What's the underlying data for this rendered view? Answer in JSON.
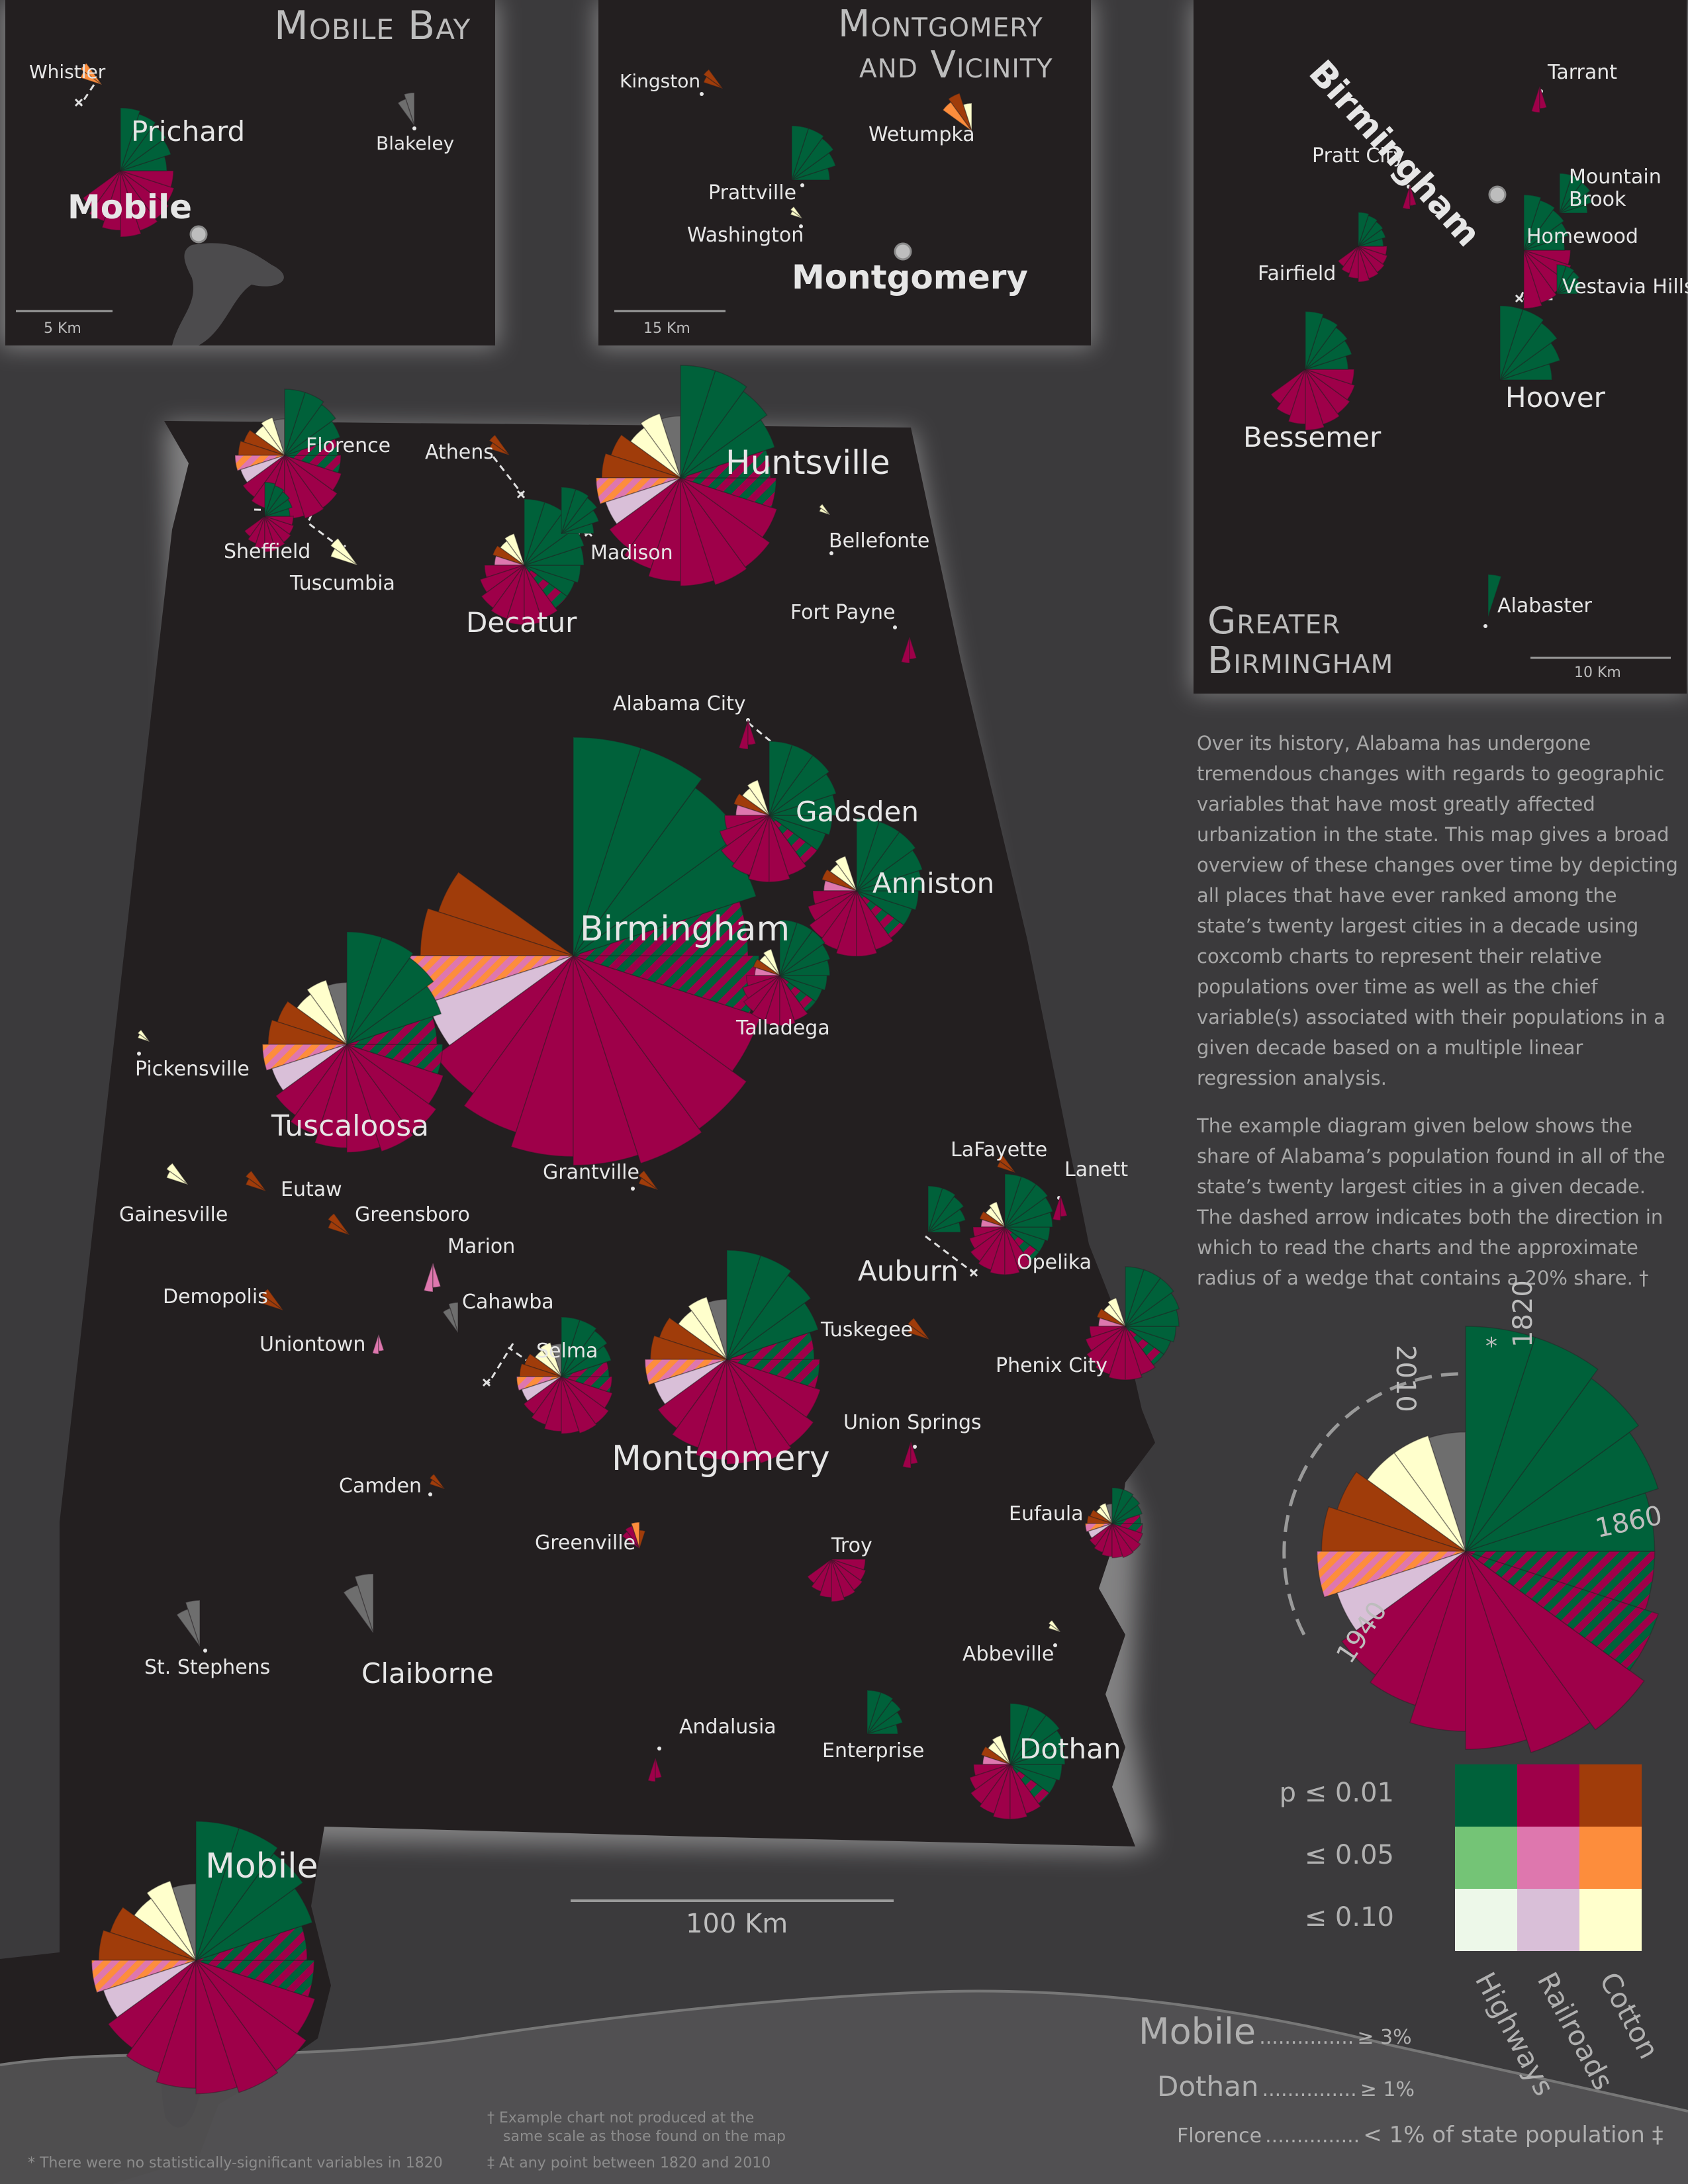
{
  "colors": {
    "background": "#3b3a3c",
    "land": "#231f20",
    "highways": "#00613a",
    "railroads": "#9e0049",
    "cotton": "#a03c0a",
    "highways_05": "#74c476",
    "railroads_05": "#de77ae",
    "cotton_05": "#fd8d3c",
    "highways_10": "#edf8e9",
    "railroads_10": "#d9bfd8",
    "cotton_10": "#ffffcc",
    "none": "#6e6e6e"
  },
  "insets": {
    "mobile_bay": {
      "title": "Mobile Bay",
      "scale": "5 Km"
    },
    "montgomery": {
      "title_line1": "Montgomery",
      "title_line2": "and Vicinity",
      "scale": "15 Km"
    },
    "birmingham": {
      "title_line1": "Greater",
      "title_line2": "Birmingham",
      "scale": "10 Km"
    }
  },
  "inset_places": {
    "whistler": "Whistler",
    "prichard": "Prichard",
    "blakeley": "Blakeley",
    "mobile": "Mobile",
    "kingston": "Kingston",
    "wetumpka": "Wetumpka",
    "prattville": "Prattville",
    "washington": "Washington",
    "montgomery": "Montgomery",
    "birmingham": "Birmingham",
    "tarrant": "Tarrant",
    "pratt_city": "Pratt City",
    "mountain_brook_1": "Mountain",
    "mountain_brook_2": "Brook",
    "homewood": "Homewood",
    "fairfield": "Fairfield",
    "vestavia": "Vestavia Hills",
    "hoover": "Hoover",
    "bessemer": "Bessemer",
    "alabaster": "Alabaster"
  },
  "map_places": {
    "florence": "Florence",
    "athens": "Athens",
    "huntsville": "Huntsville",
    "sheffield": "Sheffield",
    "tuscumbia": "Tuscumbia",
    "madison": "Madison",
    "decatur": "Decatur",
    "bellefonte": "Bellefonte",
    "fort_payne": "Fort Payne",
    "alabama_city": "Alabama City",
    "gadsden": "Gadsden",
    "anniston": "Anniston",
    "birmingham": "Birmingham",
    "talladega": "Talladega",
    "pickensville": "Pickensville",
    "tuscaloosa": "Tuscaloosa",
    "grantville": "Grantville",
    "lafayette": "LaFayette",
    "lanett": "Lanett",
    "gainesville": "Gainesville",
    "eutaw": "Eutaw",
    "greensboro": "Greensboro",
    "marion": "Marion",
    "auburn": "Auburn",
    "opelika": "Opelika",
    "demopolis": "Demopolis",
    "cahawba": "Cahawba",
    "uniontown": "Uniontown",
    "selma": "Selma",
    "tuskegee": "Tuskegee",
    "phenix_city": "Phenix City",
    "union_springs": "Union Springs",
    "montgomery": "Montgomery",
    "camden": "Camden",
    "eufaula": "Eufaula",
    "greenville": "Greenville",
    "troy": "Troy",
    "st_stephens": "St. Stephens",
    "claiborne": "Claiborne",
    "abbeville": "Abbeville",
    "andalusia": "Andalusia",
    "enterprise": "Enterprise",
    "dothan": "Dothan",
    "mobile": "Mobile"
  },
  "main_scale": "100 Km",
  "description": [
    "Over its history, Alabama has undergone tremendous changes with regards to geographic variables that have most greatly affected urbanization in the state. This map gives a broad overview of these changes over time by depicting all places that have ever ranked among the state’s twenty largest cities in a decade using coxcomb charts to represent their relative populations over time as well as the chief variable(s) associated with their populations in a given decade based on a multiple linear regression analysis.",
    "The example diagram given below shows the share of Alabama’s population found in all of the state’s twenty largest cities in a given decade. The dashed arrow indicates both the direction in which to read the charts and the approximate radius of a wedge that contains a 20% share. †"
  ],
  "example_chart": {
    "label_2010": "2010",
    "label_1820": "1820",
    "asterisk": "*",
    "label_1860": "1860",
    "label_1940": "1940"
  },
  "legend": {
    "significance": [
      "p ≤ 0.01",
      "≤ 0.05",
      "≤ 0.10"
    ],
    "variables": [
      "Highways",
      "Railroads",
      "Cotton"
    ]
  },
  "size_legend": {
    "mobile": "Mobile",
    "mobile_dots": "...............",
    "mobile_value": "≥ 3%",
    "dothan": "Dothan",
    "dothan_dots": "...............",
    "dothan_value": "≥ 1%",
    "florence": "Florence",
    "florence_dots": "...............",
    "florence_value": "< 1% of state population ‡"
  },
  "footnotes": {
    "dagger_1": "† Example chart not produced at the",
    "dagger_2": "same scale as those found on the map",
    "double_dagger": "‡ At any point between 1820 and 2010",
    "asterisk": "* There were no statistically-significant variables in 1820"
  }
}
